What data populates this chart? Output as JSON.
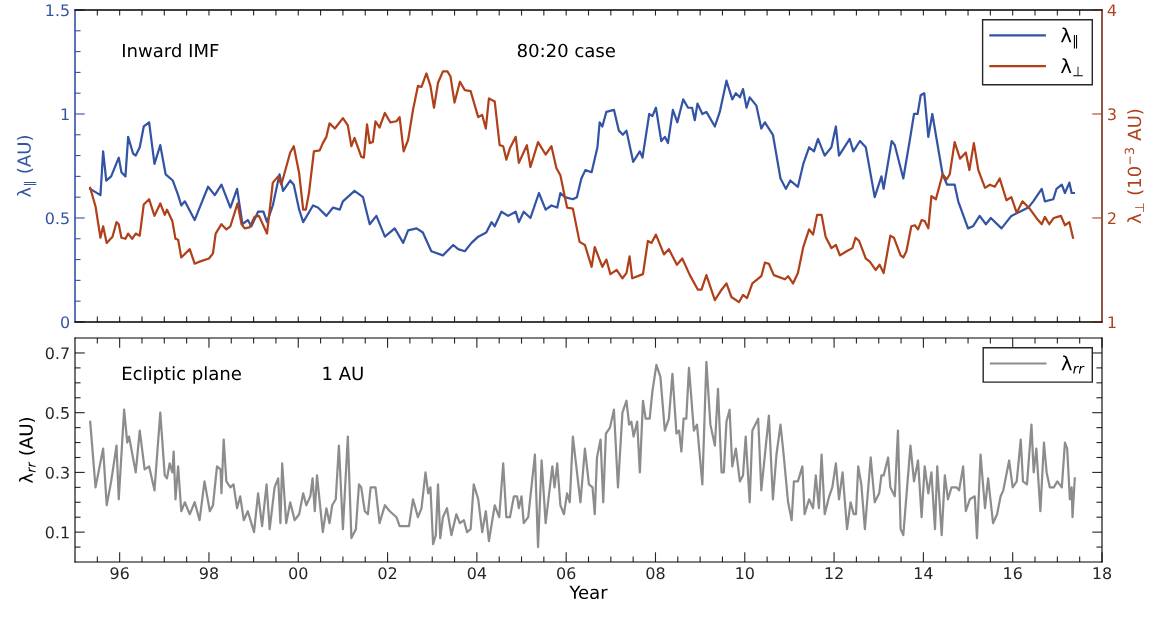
{
  "chart_data": [
    {
      "type": "line",
      "annotations": [
        "Inward IMF",
        "80:20 case"
      ],
      "ylabel": "λ$_{∥}$ (AU)",
      "y2label": "λ$_{⊥}$ (10$^{−3}$ AU)",
      "legend": "top right",
      "tick_labels": "y",
      "xlim": [
        1995,
        2018
      ],
      "xticks": [
        {
          "value": 1995.5,
          "label": null
        },
        {
          "value": 1996,
          "label": null
        },
        {
          "value": 1996.5,
          "label": null
        },
        {
          "value": 1997,
          "label": null
        },
        {
          "value": 1997.5,
          "label": null
        },
        {
          "value": 1998,
          "label": null
        },
        {
          "value": 1998.5,
          "label": null
        },
        {
          "value": 1999,
          "label": null
        },
        {
          "value": 1999.5,
          "label": null
        },
        {
          "value": 2000,
          "label": null
        },
        {
          "value": 2000.5,
          "label": null
        },
        {
          "value": 2001,
          "label": null
        },
        {
          "value": 2001.5,
          "label": null
        },
        {
          "value": 2002,
          "label": null
        },
        {
          "value": 2002.5,
          "label": null
        },
        {
          "value": 2003,
          "label": null
        },
        {
          "value": 2003.5,
          "label": null
        },
        {
          "value": 2004,
          "label": null
        },
        {
          "value": 2004.5,
          "label": null
        },
        {
          "value": 2005,
          "label": null
        },
        {
          "value": 2005.5,
          "label": null
        },
        {
          "value": 2006,
          "label": null
        },
        {
          "value": 2006.5,
          "label": null
        },
        {
          "value": 2007,
          "label": null
        },
        {
          "value": 2007.5,
          "label": null
        },
        {
          "value": 2008,
          "label": null
        },
        {
          "value": 2008.5,
          "label": null
        },
        {
          "value": 2009,
          "label": null
        },
        {
          "value": 2009.5,
          "label": null
        },
        {
          "value": 2010,
          "label": null
        },
        {
          "value": 2010.5,
          "label": null
        },
        {
          "value": 2011,
          "label": null
        },
        {
          "value": 2011.5,
          "label": null
        },
        {
          "value": 2012,
          "label": null
        },
        {
          "value": 2012.5,
          "label": null
        },
        {
          "value": 2013,
          "label": null
        },
        {
          "value": 2013.5,
          "label": null
        },
        {
          "value": 2014,
          "label": null
        },
        {
          "value": 2014.5,
          "label": null
        },
        {
          "value": 2015,
          "label": null
        },
        {
          "value": 2015.5,
          "label": null
        },
        {
          "value": 2016,
          "label": null
        },
        {
          "value": 2016.5,
          "label": null
        },
        {
          "value": 2017,
          "label": null
        },
        {
          "value": 2017.5,
          "label": null
        }
      ],
      "ylim": [
        0,
        1.5
      ],
      "yticks": [
        0,
        {
          "value": 0.1,
          "label": null
        },
        {
          "value": 0.2,
          "label": null
        },
        {
          "value": 0.3,
          "label": null
        },
        {
          "value": 0.4,
          "label": null
        },
        0.5,
        {
          "value": 0.6,
          "label": null
        },
        {
          "value": 0.7,
          "label": null
        },
        {
          "value": 0.8,
          "label": null
        },
        {
          "value": 0.9,
          "label": null
        },
        1,
        {
          "value": 1.1,
          "label": null
        },
        {
          "value": 1.2,
          "label": null
        },
        {
          "value": 1.3,
          "label": null
        },
        {
          "value": 1.4,
          "label": null
        },
        1.5
      ],
      "y2lim": [
        1,
        4
      ],
      "y2ticks": [
        1,
        2,
        3,
        4
      ],
      "series": [
        {
          "name": "λ$_{∥}$",
          "color": "#3353a4",
          "x": [
            1995.34,
            1995.57,
            1995.63,
            1995.7,
            1995.81,
            1995.98,
            1996.04,
            1996.13,
            1996.19,
            1996.3,
            1996.36,
            1996.45,
            1996.54,
            1996.66,
            1996.78,
            1996.91,
            1997.03,
            1997.19,
            1997.31,
            1997.38,
            1997.46,
            1997.68,
            1997.83,
            1997.98,
            1998.13,
            1998.28,
            1998.48,
            1998.63,
            1998.75,
            1998.87,
            1998.95,
            1999.1,
            1999.22,
            1999.3,
            1999.43,
            1999.58,
            1999.66,
            1999.82,
            1999.9,
            2000.02,
            2000.11,
            2000.33,
            2000.44,
            2000.63,
            2000.78,
            2000.93,
            2001.0,
            2001.26,
            2001.45,
            2001.6,
            2001.75,
            2001.94,
            2002.16,
            2002.35,
            2002.46,
            2002.65,
            2002.79,
            2002.98,
            2003.24,
            2003.47,
            2003.58,
            2003.73,
            2003.88,
            2004.03,
            2004.21,
            2004.33,
            2004.4,
            2004.55,
            2004.7,
            2004.87,
            2004.94,
            2005.05,
            2005.2,
            2005.39,
            2005.54,
            2005.67,
            2005.8,
            2005.87,
            2005.97,
            2006.15,
            2006.24,
            2006.34,
            2006.43,
            2006.57,
            2006.7,
            2006.75,
            2006.81,
            2006.9,
            2007.07,
            2007.18,
            2007.27,
            2007.35,
            2007.5,
            2007.65,
            2007.71,
            2007.86,
            2007.93,
            2008.01,
            2008.13,
            2008.21,
            2008.28,
            2008.39,
            2008.49,
            2008.62,
            2008.73,
            2008.82,
            2008.88,
            2008.94,
            2009.05,
            2009.14,
            2009.33,
            2009.44,
            2009.59,
            2009.72,
            2009.8,
            2009.89,
            2009.96,
            2010.04,
            2010.11,
            2010.26,
            2010.37,
            2010.45,
            2010.63,
            2010.8,
            2010.92,
            2011.02,
            2011.19,
            2011.31,
            2011.44,
            2011.55,
            2011.64,
            2011.79,
            2011.94,
            2012.04,
            2012.11,
            2012.35,
            2012.43,
            2012.58,
            2012.71,
            2012.91,
            2013.06,
            2013.11,
            2013.29,
            2013.36,
            2013.55,
            2013.7,
            2013.79,
            2013.87,
            2013.94,
            2014.02,
            2014.11,
            2014.2,
            2014.43,
            2014.53,
            2014.7,
            2014.78,
            2015.0,
            2015.11,
            2015.26,
            2015.4,
            2015.51,
            2015.75,
            2015.97,
            2016.16,
            2016.35,
            2016.46,
            2016.65,
            2016.72,
            2016.91,
            2016.98,
            2017.1,
            2017.17,
            2017.27,
            2017.32,
            2017.37
          ],
          "values": [
            0.64,
            0.61,
            0.82,
            0.68,
            0.7,
            0.79,
            0.72,
            0.7,
            0.89,
            0.81,
            0.8,
            0.84,
            0.94,
            0.96,
            0.76,
            0.85,
            0.71,
            0.68,
            0.61,
            0.56,
            0.58,
            0.49,
            0.57,
            0.65,
            0.61,
            0.66,
            0.55,
            0.64,
            0.47,
            0.49,
            0.46,
            0.53,
            0.53,
            0.48,
            0.56,
            0.71,
            0.63,
            0.68,
            0.66,
            0.54,
            0.48,
            0.56,
            0.55,
            0.51,
            0.55,
            0.54,
            0.58,
            0.63,
            0.6,
            0.47,
            0.51,
            0.41,
            0.45,
            0.38,
            0.44,
            0.45,
            0.43,
            0.34,
            0.32,
            0.37,
            0.35,
            0.34,
            0.38,
            0.41,
            0.43,
            0.48,
            0.46,
            0.53,
            0.51,
            0.53,
            0.48,
            0.53,
            0.5,
            0.62,
            0.54,
            0.56,
            0.55,
            0.62,
            0.6,
            0.59,
            0.6,
            0.69,
            0.73,
            0.72,
            0.84,
            0.96,
            0.94,
            1.01,
            1.02,
            0.92,
            0.9,
            0.92,
            0.77,
            0.82,
            0.79,
            1.0,
            0.99,
            1.03,
            0.87,
            0.89,
            0.86,
            1.02,
            0.96,
            1.07,
            1.03,
            1.03,
            0.97,
            1.05,
            1.0,
            1.01,
            0.94,
            1.01,
            1.16,
            1.07,
            1.1,
            1.08,
            1.12,
            1.03,
            1.08,
            1.04,
            0.93,
            0.96,
            0.9,
            0.69,
            0.64,
            0.68,
            0.65,
            0.76,
            0.84,
            0.82,
            0.88,
            0.8,
            0.84,
            0.94,
            0.8,
            0.88,
            0.82,
            0.87,
            0.84,
            0.6,
            0.7,
            0.64,
            0.87,
            0.85,
            0.69,
            0.88,
            1.0,
            1.0,
            1.09,
            1.1,
            0.89,
            1.0,
            0.71,
            0.66,
            0.66,
            0.58,
            0.45,
            0.46,
            0.51,
            0.47,
            0.5,
            0.45,
            0.51,
            0.53,
            0.55,
            0.58,
            0.64,
            0.58,
            0.59,
            0.64,
            0.66,
            0.62,
            0.67,
            0.62,
            0.62
          ]
        },
        {
          "name": "λ$_{⊥}$",
          "color": "#b0401a",
          "axis": "y2",
          "x": [
            1995.34,
            1995.46,
            1995.57,
            1995.63,
            1995.71,
            1995.84,
            1995.93,
            1995.98,
            1996.04,
            1996.13,
            1996.19,
            1996.28,
            1996.36,
            1996.45,
            1996.54,
            1996.66,
            1996.78,
            1996.91,
            1997.01,
            1997.06,
            1997.18,
            1997.25,
            1997.31,
            1997.38,
            1997.57,
            1997.68,
            1997.79,
            1998.0,
            1998.09,
            1998.15,
            1998.28,
            1998.39,
            1998.48,
            1998.64,
            1998.73,
            1998.8,
            1998.91,
            1999.02,
            1999.12,
            1999.3,
            1999.43,
            1999.55,
            1999.62,
            1999.82,
            1999.9,
            2000.02,
            2000.11,
            2000.17,
            2000.24,
            2000.35,
            2000.48,
            2000.55,
            2000.63,
            2000.7,
            2000.82,
            2001.0,
            2001.11,
            2001.19,
            2001.26,
            2001.41,
            2001.47,
            2001.54,
            2001.6,
            2001.67,
            2001.73,
            2001.82,
            2001.94,
            2002.06,
            2002.2,
            2002.27,
            2002.36,
            2002.46,
            2002.57,
            2002.68,
            2002.76,
            2002.87,
            2002.96,
            2003.04,
            2003.13,
            2003.24,
            2003.34,
            2003.41,
            2003.5,
            2003.62,
            2003.73,
            2003.86,
            2004.03,
            2004.12,
            2004.2,
            2004.27,
            2004.4,
            2004.51,
            2004.59,
            2004.66,
            2004.74,
            2004.87,
            2004.94,
            2005.12,
            2005.2,
            2005.37,
            2005.54,
            2005.67,
            2005.78,
            2005.87,
            2006.02,
            2006.15,
            2006.3,
            2006.42,
            2006.57,
            2006.64,
            2006.81,
            2006.9,
            2006.99,
            2007.13,
            2007.26,
            2007.35,
            2007.42,
            2007.48,
            2007.72,
            2007.83,
            2007.91,
            2008.01,
            2008.19,
            2008.3,
            2008.48,
            2008.6,
            2008.77,
            2008.95,
            2009.03,
            2009.14,
            2009.33,
            2009.48,
            2009.59,
            2009.7,
            2009.87,
            2009.96,
            2010.05,
            2010.17,
            2010.37,
            2010.45,
            2010.54,
            2010.65,
            2010.9,
            2010.97,
            2011.08,
            2011.19,
            2011.31,
            2011.44,
            2011.53,
            2011.62,
            2011.72,
            2011.81,
            2011.94,
            2012.04,
            2012.13,
            2012.28,
            2012.41,
            2012.48,
            2012.56,
            2012.71,
            2012.8,
            2012.93,
            2013.02,
            2013.11,
            2013.26,
            2013.34,
            2013.49,
            2013.55,
            2013.62,
            2013.73,
            2013.81,
            2013.88,
            2013.96,
            2014.03,
            2014.11,
            2014.18,
            2014.28,
            2014.43,
            2014.52,
            2014.59,
            2014.7,
            2014.82,
            2014.95,
            2015.03,
            2015.13,
            2015.23,
            2015.38,
            2015.49,
            2015.6,
            2015.71,
            2015.86,
            2015.97,
            2016.09,
            2016.22,
            2016.38,
            2016.53,
            2016.65,
            2016.72,
            2016.82,
            2016.92,
            2017.08,
            2017.17,
            2017.27,
            2017.35
          ],
          "values": [
            2.29,
            2.11,
            1.81,
            1.92,
            1.76,
            1.82,
            1.96,
            1.94,
            1.81,
            1.8,
            1.85,
            1.8,
            1.85,
            1.83,
            2.13,
            2.18,
            2.02,
            2.14,
            2.03,
            2.08,
            1.97,
            1.8,
            1.79,
            1.62,
            1.7,
            1.56,
            1.58,
            1.61,
            1.66,
            1.85,
            1.94,
            1.89,
            1.92,
            2.14,
            1.94,
            1.9,
            1.91,
            2.01,
            2.02,
            1.85,
            2.34,
            2.4,
            2.32,
            2.63,
            2.69,
            2.43,
            2.08,
            2.08,
            2.24,
            2.64,
            2.65,
            2.72,
            2.78,
            2.91,
            2.86,
            2.96,
            2.89,
            2.69,
            2.77,
            2.59,
            2.58,
            2.9,
            2.72,
            2.73,
            2.93,
            2.87,
            3.01,
            2.92,
            2.93,
            2.97,
            2.64,
            2.75,
            3.04,
            3.27,
            3.26,
            3.39,
            3.27,
            3.06,
            3.3,
            3.41,
            3.41,
            3.36,
            3.11,
            3.31,
            3.23,
            3.22,
            2.97,
            2.99,
            2.86,
            3.15,
            3.12,
            2.7,
            2.69,
            2.56,
            2.67,
            2.78,
            2.53,
            2.7,
            2.49,
            2.73,
            2.61,
            2.69,
            2.48,
            2.41,
            2.1,
            2.09,
            1.77,
            1.74,
            1.53,
            1.72,
            1.53,
            1.6,
            1.46,
            1.5,
            1.42,
            1.47,
            1.63,
            1.42,
            1.46,
            1.78,
            1.76,
            1.84,
            1.65,
            1.7,
            1.55,
            1.61,
            1.45,
            1.31,
            1.31,
            1.45,
            1.21,
            1.31,
            1.37,
            1.24,
            1.19,
            1.26,
            1.23,
            1.37,
            1.44,
            1.57,
            1.56,
            1.45,
            1.41,
            1.44,
            1.37,
            1.47,
            1.72,
            1.89,
            1.84,
            2.03,
            2.03,
            1.82,
            1.71,
            1.74,
            1.64,
            1.68,
            1.71,
            1.81,
            1.78,
            1.61,
            1.58,
            1.5,
            1.55,
            1.47,
            1.83,
            1.81,
            1.64,
            1.62,
            1.68,
            1.92,
            1.93,
            1.89,
            1.98,
            1.97,
            1.9,
            2.21,
            2.18,
            2.42,
            2.37,
            2.42,
            2.73,
            2.57,
            2.63,
            2.46,
            2.72,
            2.46,
            2.29,
            2.32,
            2.3,
            2.38,
            2.17,
            2.2,
            2.05,
            2.16,
            2.09,
            2.0,
            1.94,
            2.01,
            1.94,
            2.0,
            2.02,
            1.93,
            1.96,
            1.81
          ]
        }
      ]
    },
    {
      "type": "line",
      "annotations": [
        "Ecliptic plane",
        "1 AU"
      ],
      "xlabel": "Year",
      "ylabel": "λ$_{rr}$ (AU)",
      "legend": "top right",
      "xlim": [
        1995,
        2018
      ],
      "xticks": [
        {
          "value": 1995.5,
          "label": null
        },
        {
          "value": 1996,
          "label": "96"
        },
        {
          "value": 1996.5,
          "label": null
        },
        {
          "value": 1997,
          "label": null
        },
        {
          "value": 1997.5,
          "label": null
        },
        {
          "value": 1998,
          "label": "98"
        },
        {
          "value": 1998.5,
          "label": null
        },
        {
          "value": 1999,
          "label": null
        },
        {
          "value": 1999.5,
          "label": null
        },
        {
          "value": 2000,
          "label": "00"
        },
        {
          "value": 2000.5,
          "label": null
        },
        {
          "value": 2001,
          "label": null
        },
        {
          "value": 2001.5,
          "label": null
        },
        {
          "value": 2002,
          "label": "02"
        },
        {
          "value": 2002.5,
          "label": null
        },
        {
          "value": 2003,
          "label": null
        },
        {
          "value": 2003.5,
          "label": null
        },
        {
          "value": 2004,
          "label": "04"
        },
        {
          "value": 2004.5,
          "label": null
        },
        {
          "value": 2005,
          "label": null
        },
        {
          "value": 2005.5,
          "label": null
        },
        {
          "value": 2006,
          "label": "06"
        },
        {
          "value": 2006.5,
          "label": null
        },
        {
          "value": 2007,
          "label": null
        },
        {
          "value": 2007.5,
          "label": null
        },
        {
          "value": 2008,
          "label": "08"
        },
        {
          "value": 2008.5,
          "label": null
        },
        {
          "value": 2009,
          "label": null
        },
        {
          "value": 2009.5,
          "label": null
        },
        {
          "value": 2010,
          "label": "10"
        },
        {
          "value": 2010.5,
          "label": null
        },
        {
          "value": 2011,
          "label": null
        },
        {
          "value": 2011.5,
          "label": null
        },
        {
          "value": 2012,
          "label": "12"
        },
        {
          "value": 2012.5,
          "label": null
        },
        {
          "value": 2013,
          "label": null
        },
        {
          "value": 2013.5,
          "label": null
        },
        {
          "value": 2014,
          "label": "14"
        },
        {
          "value": 2014.5,
          "label": null
        },
        {
          "value": 2015,
          "label": null
        },
        {
          "value": 2015.5,
          "label": null
        },
        {
          "value": 2016,
          "label": "16"
        },
        {
          "value": 2016.5,
          "label": null
        },
        {
          "value": 2017,
          "label": null
        },
        {
          "value": 2017.5,
          "label": null
        },
        {
          "value": 2018,
          "label": "18"
        }
      ],
      "ylim": [
        0,
        0.75
      ],
      "yticks": [
        {
          "value": 0.05,
          "label": null
        },
        0.1,
        {
          "value": 0.15,
          "label": null
        },
        {
          "value": 0.2,
          "label": null
        },
        {
          "value": 0.25,
          "label": null
        },
        0.3,
        {
          "value": 0.35,
          "label": null
        },
        {
          "value": 0.4,
          "label": null
        },
        {
          "value": 0.45,
          "label": null
        },
        0.5,
        {
          "value": 0.55,
          "label": null
        },
        {
          "value": 0.6,
          "label": null
        },
        {
          "value": 0.65,
          "label": null
        },
        0.7
      ],
      "series": [
        {
          "name": "λ$_{rr}$",
          "color": "#8c8c8c",
          "x": [
            1995.34,
            1995.46,
            1995.63,
            1995.71,
            1995.81,
            1995.93,
            1995.98,
            1996.1,
            1996.17,
            1996.21,
            1996.36,
            1996.45,
            1996.56,
            1996.66,
            1996.78,
            1996.91,
            1997.01,
            1997.06,
            1997.12,
            1997.18,
            1997.21,
            1997.25,
            1997.31,
            1997.38,
            1997.46,
            1997.57,
            1997.68,
            1997.79,
            1997.9,
            1998.02,
            1998.09,
            1998.18,
            1998.26,
            1998.28,
            1998.33,
            1998.39,
            1998.48,
            1998.55,
            1998.63,
            1998.7,
            1998.78,
            1998.87,
            1999.01,
            1999.1,
            1999.19,
            1999.29,
            1999.36,
            1999.47,
            1999.55,
            1999.6,
            1999.64,
            1999.73,
            1999.82,
            1999.92,
            2000.02,
            2000.11,
            2000.18,
            2000.27,
            2000.32,
            2000.37,
            2000.42,
            2000.55,
            2000.63,
            2000.7,
            2000.76,
            2000.84,
            2000.91,
            2001.0,
            2001.11,
            2001.19,
            2001.29,
            2001.36,
            2001.41,
            2001.49,
            2001.56,
            2001.62,
            2001.73,
            2001.82,
            2001.94,
            2002.05,
            2002.2,
            2002.27,
            2002.48,
            2002.57,
            2002.68,
            2002.76,
            2002.85,
            2002.91,
            2002.96,
            2003.02,
            2003.08,
            2003.13,
            2003.18,
            2003.24,
            2003.33,
            2003.43,
            2003.54,
            2003.62,
            2003.71,
            2003.78,
            2003.86,
            2003.93,
            2004.03,
            2004.12,
            2004.2,
            2004.27,
            2004.4,
            2004.5,
            2004.59,
            2004.66,
            2004.74,
            2004.83,
            2004.9,
            2004.94,
            2005.0,
            2005.05,
            2005.15,
            2005.3,
            2005.37,
            2005.45,
            2005.54,
            2005.69,
            2005.74,
            2005.8,
            2005.87,
            2005.95,
            2006.02,
            2006.08,
            2006.15,
            2006.32,
            2006.42,
            2006.51,
            2006.59,
            2006.64,
            2006.69,
            2006.77,
            2006.83,
            2006.89,
            2006.98,
            2007.07,
            2007.16,
            2007.26,
            2007.35,
            2007.41,
            2007.46,
            2007.51,
            2007.59,
            2007.65,
            2007.72,
            2007.78,
            2007.87,
            2007.93,
            2008.02,
            2008.11,
            2008.21,
            2008.3,
            2008.38,
            2008.47,
            2008.53,
            2008.58,
            2008.63,
            2008.69,
            2008.75,
            2008.86,
            2008.93,
            2009.05,
            2009.14,
            2009.23,
            2009.33,
            2009.4,
            2009.48,
            2009.53,
            2009.59,
            2009.66,
            2009.72,
            2009.8,
            2009.89,
            2009.96,
            2010.02,
            2010.11,
            2010.17,
            2010.3,
            2010.37,
            2010.54,
            2010.63,
            2010.71,
            2010.8,
            2010.87,
            2010.97,
            2011.05,
            2011.1,
            2011.19,
            2011.29,
            2011.34,
            2011.44,
            2011.53,
            2011.59,
            2011.66,
            2011.72,
            2011.79,
            2011.89,
            2011.96,
            2012.04,
            2012.11,
            2012.19,
            2012.29,
            2012.37,
            2012.44,
            2012.49,
            2012.54,
            2012.61,
            2012.69,
            2012.82,
            2012.91,
            2013.01,
            2013.06,
            2013.11,
            2013.21,
            2013.26,
            2013.36,
            2013.43,
            2013.49,
            2013.55,
            2013.71,
            2013.79,
            2013.88,
            2013.96,
            2014.03,
            2014.11,
            2014.18,
            2014.26,
            2014.31,
            2014.41,
            2014.48,
            2014.55,
            2014.63,
            2014.74,
            2014.8,
            2014.89,
            2014.95,
            2015.04,
            2015.15,
            2015.2,
            2015.28,
            2015.38,
            2015.45,
            2015.56,
            2015.65,
            2015.73,
            2015.79,
            2015.92,
            2016.0,
            2016.09,
            2016.18,
            2016.23,
            2016.32,
            2016.42,
            2016.47,
            2016.53,
            2016.62,
            2016.7,
            2016.76,
            2016.83,
            2016.92,
            2017.0,
            2017.1,
            2017.17,
            2017.22,
            2017.28,
            2017.32,
            2017.34,
            2017.39
          ],
          "values": [
            0.47,
            0.25,
            0.38,
            0.19,
            0.27,
            0.39,
            0.21,
            0.51,
            0.4,
            0.42,
            0.3,
            0.44,
            0.31,
            0.32,
            0.24,
            0.5,
            0.29,
            0.28,
            0.33,
            0.3,
            0.37,
            0.21,
            0.32,
            0.17,
            0.2,
            0.16,
            0.2,
            0.14,
            0.27,
            0.17,
            0.19,
            0.32,
            0.31,
            0.23,
            0.41,
            0.27,
            0.25,
            0.26,
            0.18,
            0.22,
            0.14,
            0.17,
            0.1,
            0.23,
            0.12,
            0.26,
            0.11,
            0.25,
            0.28,
            0.13,
            0.33,
            0.13,
            0.2,
            0.14,
            0.16,
            0.23,
            0.19,
            0.22,
            0.28,
            0.17,
            0.29,
            0.1,
            0.18,
            0.13,
            0.19,
            0.21,
            0.39,
            0.11,
            0.42,
            0.08,
            0.11,
            0.26,
            0.25,
            0.17,
            0.16,
            0.25,
            0.25,
            0.13,
            0.19,
            0.17,
            0.15,
            0.12,
            0.12,
            0.21,
            0.15,
            0.18,
            0.3,
            0.23,
            0.25,
            0.06,
            0.09,
            0.26,
            0.08,
            0.15,
            0.18,
            0.09,
            0.16,
            0.13,
            0.14,
            0.1,
            0.11,
            0.26,
            0.21,
            0.1,
            0.17,
            0.07,
            0.19,
            0.15,
            0.33,
            0.15,
            0.15,
            0.22,
            0.22,
            0.18,
            0.22,
            0.13,
            0.15,
            0.36,
            0.05,
            0.34,
            0.13,
            0.32,
            0.25,
            0.33,
            0.19,
            0.16,
            0.23,
            0.2,
            0.42,
            0.2,
            0.38,
            0.26,
            0.25,
            0.16,
            0.35,
            0.41,
            0.2,
            0.43,
            0.45,
            0.51,
            0.25,
            0.5,
            0.54,
            0.46,
            0.47,
            0.42,
            0.47,
            0.3,
            0.54,
            0.48,
            0.48,
            0.57,
            0.66,
            0.62,
            0.44,
            0.48,
            0.63,
            0.43,
            0.44,
            0.37,
            0.48,
            0.48,
            0.65,
            0.44,
            0.46,
            0.26,
            0.67,
            0.46,
            0.39,
            0.58,
            0.3,
            0.3,
            0.47,
            0.51,
            0.32,
            0.38,
            0.27,
            0.29,
            0.42,
            0.2,
            0.44,
            0.48,
            0.24,
            0.49,
            0.21,
            0.36,
            0.46,
            0.36,
            0.2,
            0.14,
            0.27,
            0.27,
            0.32,
            0.16,
            0.21,
            0.18,
            0.29,
            0.18,
            0.36,
            0.16,
            0.22,
            0.25,
            0.33,
            0.21,
            0.3,
            0.11,
            0.2,
            0.16,
            0.16,
            0.32,
            0.26,
            0.11,
            0.35,
            0.2,
            0.23,
            0.29,
            0.29,
            0.35,
            0.25,
            0.22,
            0.44,
            0.11,
            0.09,
            0.39,
            0.27,
            0.34,
            0.15,
            0.32,
            0.23,
            0.3,
            0.11,
            0.32,
            0.09,
            0.29,
            0.21,
            0.25,
            0.25,
            0.24,
            0.32,
            0.17,
            0.21,
            0.22,
            0.08,
            0.36,
            0.18,
            0.28,
            0.13,
            0.16,
            0.22,
            0.24,
            0.34,
            0.25,
            0.27,
            0.41,
            0.27,
            0.26,
            0.46,
            0.3,
            0.38,
            0.17,
            0.4,
            0.3,
            0.25,
            0.25,
            0.27,
            0.25,
            0.4,
            0.38,
            0.21,
            0.25,
            0.15,
            0.28
          ]
        }
      ]
    }
  ]
}
